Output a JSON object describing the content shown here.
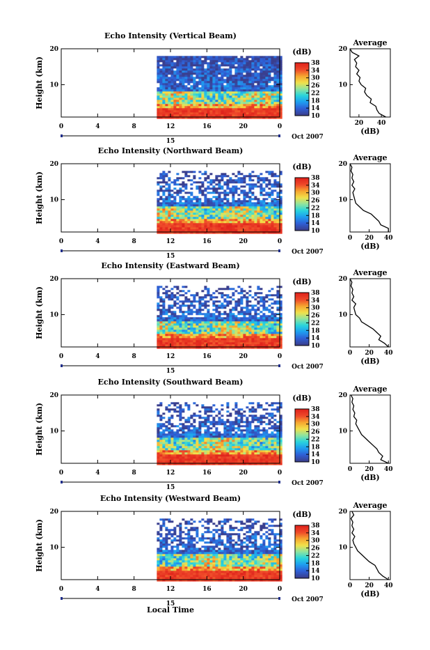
{
  "figure": {
    "xlabel": "Local Time",
    "date_label": "Oct 2007",
    "day_label": "15"
  },
  "colors": {
    "white": "#ffffff",
    "stops": [
      "#3a3f8e",
      "#2f5fd6",
      "#1f9df0",
      "#28d4dc",
      "#8ee4a0",
      "#f2e14a",
      "#f6a630",
      "#ef4a2a",
      "#e0241c"
    ]
  },
  "chart_data": [
    {
      "type": "heatmap",
      "title": "Echo Intensity (Vertical Beam)",
      "ylabel": "Height (km)",
      "xlim": [
        0,
        24
      ],
      "ylim": [
        1,
        20
      ],
      "xticks": [
        "0",
        "4",
        "8",
        "12",
        "16",
        "20",
        "0"
      ],
      "yticks": [
        "10",
        "20"
      ],
      "data_start_hour": 10.5,
      "colorbar": {
        "label": "(dB)",
        "ticks": [
          "10",
          "14",
          "18",
          "22",
          "26",
          "30",
          "34",
          "38"
        ],
        "range": [
          10,
          38
        ]
      },
      "profile": {
        "title": "Average",
        "xlabel": "(dB)",
        "xticks": [
          "20",
          "40"
        ],
        "xlim": [
          12,
          48
        ],
        "yticks": [
          "10",
          "20"
        ],
        "heights": [
          1,
          2,
          3,
          4,
          5,
          6,
          7,
          8,
          9,
          10,
          11,
          12,
          13,
          14,
          15,
          16,
          17,
          18,
          19,
          20
        ],
        "values": [
          44,
          38,
          36,
          35,
          30,
          31,
          27,
          25,
          26,
          22,
          20,
          21,
          18,
          20,
          17,
          18,
          16,
          20,
          14,
          12
        ]
      }
    },
    {
      "type": "heatmap",
      "title": "Echo Intensity (Northward Beam)",
      "ylabel": "Height (km)",
      "xlim": [
        0,
        24
      ],
      "ylim": [
        1,
        20
      ],
      "xticks": [
        "0",
        "4",
        "8",
        "12",
        "16",
        "20",
        "0"
      ],
      "yticks": [
        "10",
        "20"
      ],
      "data_start_hour": 10.5,
      "colorbar": {
        "label": "(dB)",
        "ticks": [
          "10",
          "14",
          "18",
          "22",
          "26",
          "30",
          "34",
          "38"
        ],
        "range": [
          10,
          38
        ]
      },
      "profile": {
        "title": "Average",
        "xlabel": "(dB)",
        "xticks": [
          "0",
          "20",
          "40"
        ],
        "xlim": [
          0,
          42
        ],
        "yticks": [
          "10",
          "20"
        ],
        "heights": [
          1,
          2,
          3,
          4,
          5,
          6,
          7,
          8,
          9,
          10,
          11,
          12,
          13,
          14,
          15,
          16,
          17,
          18,
          19,
          20
        ],
        "values": [
          40,
          40,
          32,
          30,
          26,
          22,
          14,
          10,
          6,
          5,
          4,
          3,
          5,
          2,
          4,
          2,
          3,
          1,
          2,
          0
        ]
      }
    },
    {
      "type": "heatmap",
      "title": "Echo Intensity (Eastward Beam)",
      "ylabel": "Height (km)",
      "xlim": [
        0,
        24
      ],
      "ylim": [
        1,
        20
      ],
      "xticks": [
        "0",
        "4",
        "8",
        "12",
        "16",
        "20",
        "0"
      ],
      "yticks": [
        "10",
        "20"
      ],
      "data_start_hour": 10.5,
      "colorbar": {
        "label": "(dB)",
        "ticks": [
          "10",
          "14",
          "18",
          "22",
          "26",
          "30",
          "34",
          "38"
        ],
        "range": [
          10,
          38
        ]
      },
      "profile": {
        "title": "Average",
        "xlabel": "(dB)",
        "xticks": [
          "0",
          "20",
          "40"
        ],
        "xlim": [
          0,
          42
        ],
        "yticks": [
          "10",
          "20"
        ],
        "heights": [
          1,
          2,
          3,
          4,
          5,
          6,
          7,
          8,
          9,
          10,
          11,
          12,
          13,
          14,
          15,
          16,
          17,
          18,
          19,
          20
        ],
        "values": [
          40,
          36,
          30,
          32,
          28,
          24,
          18,
          12,
          10,
          6,
          5,
          4,
          6,
          2,
          4,
          2,
          3,
          1,
          2,
          0
        ]
      }
    },
    {
      "type": "heatmap",
      "title": "Echo Intensity (Southward Beam)",
      "ylabel": "Height (km)",
      "xlim": [
        0,
        24
      ],
      "ylim": [
        1,
        20
      ],
      "xticks": [
        "0",
        "4",
        "8",
        "12",
        "16",
        "20",
        "0"
      ],
      "yticks": [
        "10",
        "20"
      ],
      "data_start_hour": 10.5,
      "colorbar": {
        "label": "(dB)",
        "ticks": [
          "10",
          "14",
          "18",
          "22",
          "26",
          "30",
          "34",
          "38"
        ],
        "range": [
          10,
          38
        ]
      },
      "profile": {
        "title": "Average",
        "xlabel": "(dB)",
        "xticks": [
          "0",
          "20",
          "40"
        ],
        "xlim": [
          0,
          42
        ],
        "yticks": [
          "10",
          "20"
        ],
        "heights": [
          1,
          2,
          3,
          4,
          5,
          6,
          7,
          8,
          9,
          10,
          11,
          12,
          13,
          14,
          15,
          16,
          17,
          18,
          19,
          20
        ],
        "values": [
          40,
          32,
          34,
          30,
          28,
          24,
          20,
          16,
          12,
          10,
          8,
          6,
          7,
          4,
          5,
          3,
          4,
          2,
          3,
          1
        ]
      }
    },
    {
      "type": "heatmap",
      "title": "Echo Intensity (Westward Beam)",
      "ylabel": "Height (km)",
      "xlim": [
        0,
        24
      ],
      "ylim": [
        1,
        20
      ],
      "xticks": [
        "0",
        "4",
        "8",
        "12",
        "16",
        "20",
        "0"
      ],
      "yticks": [
        "10",
        "20"
      ],
      "data_start_hour": 10.5,
      "colorbar": {
        "label": "(dB)",
        "ticks": [
          "10",
          "14",
          "18",
          "22",
          "26",
          "30",
          "34",
          "38"
        ],
        "range": [
          10,
          38
        ]
      },
      "profile": {
        "title": "Average",
        "xlabel": "(dB)",
        "xticks": [
          "0",
          "20",
          "40"
        ],
        "xlim": [
          0,
          42
        ],
        "yticks": [
          "10",
          "20"
        ],
        "heights": [
          1,
          2,
          3,
          4,
          5,
          6,
          7,
          8,
          9,
          10,
          11,
          12,
          13,
          14,
          15,
          16,
          17,
          18,
          19,
          20
        ],
        "values": [
          40,
          34,
          30,
          28,
          26,
          20,
          16,
          12,
          8,
          6,
          4,
          3,
          5,
          2,
          4,
          2,
          3,
          1,
          4,
          2
        ]
      }
    }
  ]
}
